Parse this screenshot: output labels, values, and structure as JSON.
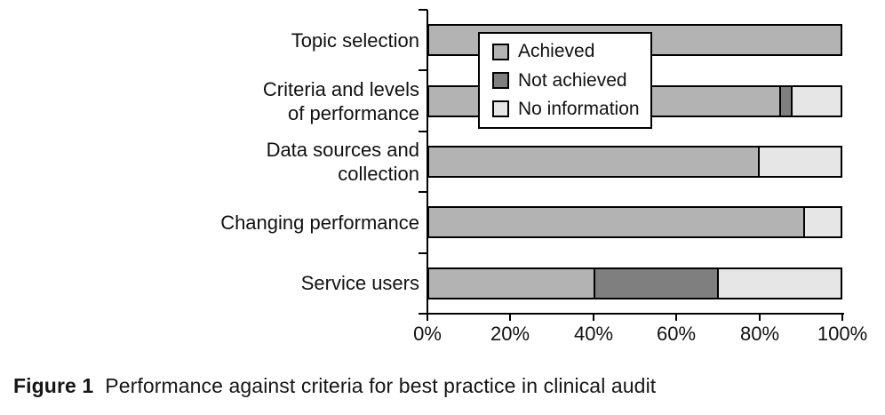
{
  "figure_caption": {
    "label": "Figure 1",
    "text": "Performance against criteria for best practice in clinical audit"
  },
  "legend": {
    "items": [
      {
        "label": "Achieved",
        "color": "#b3b3b3"
      },
      {
        "label": "Not achieved",
        "color": "#7f7f7f"
      },
      {
        "label": "No information",
        "color": "#e6e6e6"
      }
    ]
  },
  "chart_data": {
    "type": "bar",
    "orientation": "horizontal",
    "stacked": true,
    "title": "",
    "xlabel": "",
    "ylabel": "",
    "unit": "%",
    "xlim": [
      0,
      100
    ],
    "x_tick_labels": [
      "0%",
      "20%",
      "40%",
      "60%",
      "80%",
      "100%"
    ],
    "grid": false,
    "legend_position": "inside-top-left",
    "categories": [
      "Topic selection",
      "Criteria and levels of performance",
      "Data sources and collection",
      "Changing performance",
      "Service users"
    ],
    "category_label_lines": [
      [
        "Topic selection"
      ],
      [
        "Criteria and levels",
        "of performance"
      ],
      [
        "Data sources and",
        "collection"
      ],
      [
        "Changing performance"
      ],
      [
        "Service users"
      ]
    ],
    "series": [
      {
        "name": "Achieved",
        "color": "#b3b3b3",
        "values": [
          100,
          85,
          80,
          91,
          40
        ]
      },
      {
        "name": "Not achieved",
        "color": "#7f7f7f",
        "values": [
          0,
          3,
          0,
          0,
          30
        ]
      },
      {
        "name": "No information",
        "color": "#e6e6e6",
        "values": [
          0,
          12,
          20,
          9,
          30
        ]
      }
    ]
  },
  "colors": {
    "axis": "#000000",
    "bar_border": "#000000",
    "background": "#ffffff",
    "text": "#111111"
  }
}
